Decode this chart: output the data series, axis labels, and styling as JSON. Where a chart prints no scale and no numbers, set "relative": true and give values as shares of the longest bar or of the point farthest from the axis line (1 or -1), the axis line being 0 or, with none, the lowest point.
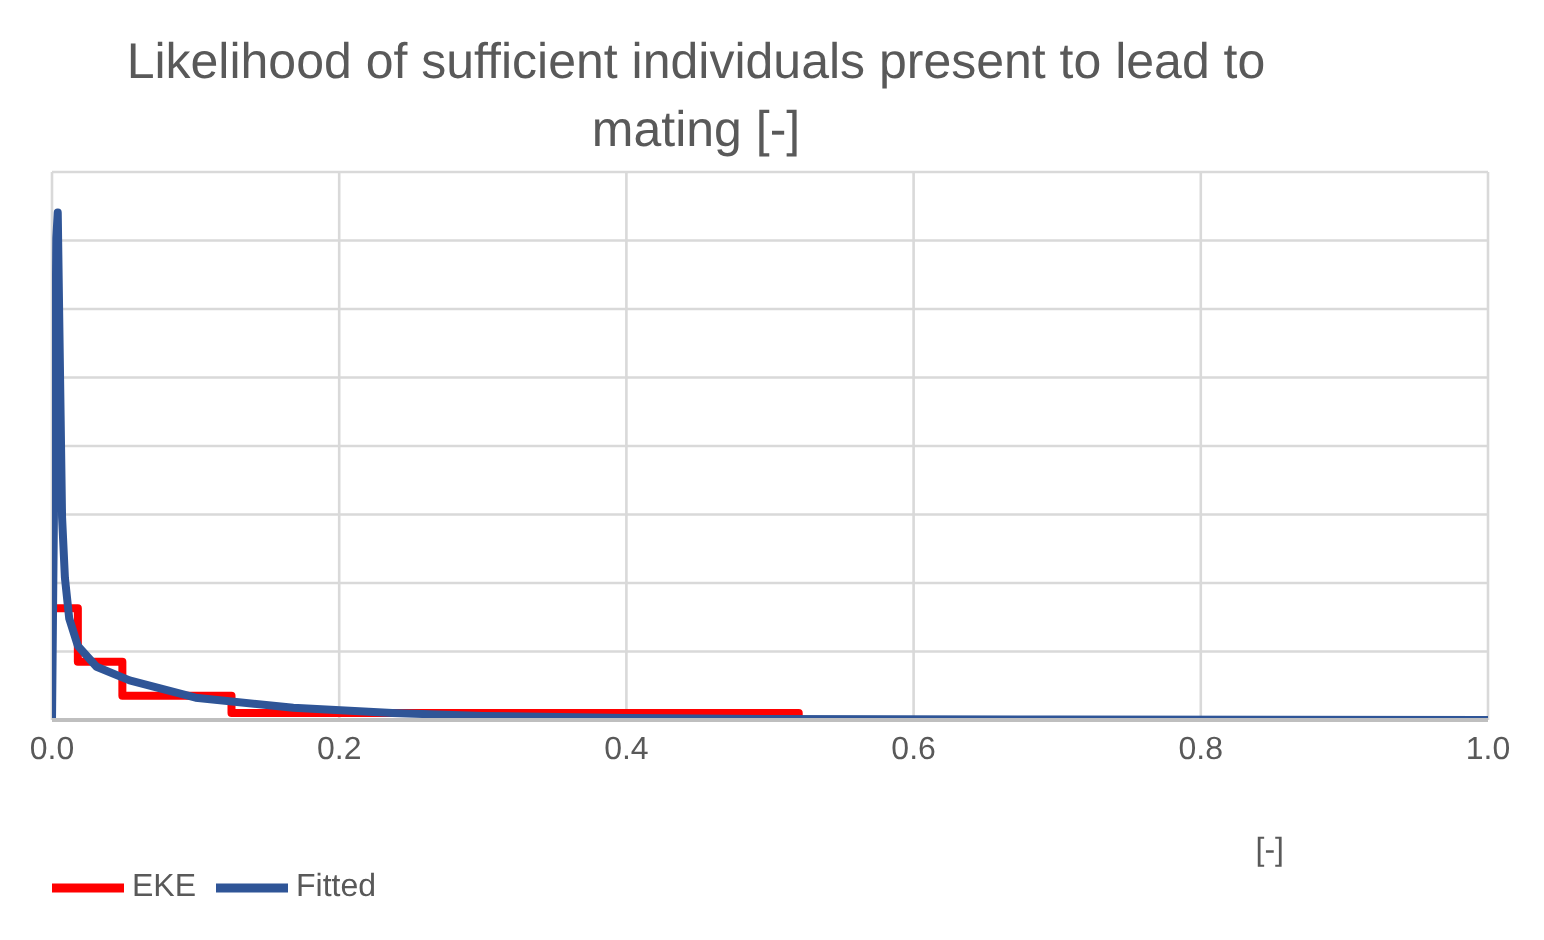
{
  "chart_data": {
    "type": "line",
    "title": "Likelihood of sufficient individuals present to lead to mating [-]",
    "xlabel": "[-]",
    "relative": true,
    "xlim": [
      0,
      1
    ],
    "xticks": [
      {
        "value": 0,
        "label": "0.0"
      },
      {
        "value": 0.2,
        "label": "0.2"
      },
      {
        "value": 0.4,
        "label": "0.4"
      },
      {
        "value": 0.6,
        "label": "0.6"
      },
      {
        "value": 0.8,
        "label": "0.8"
      },
      {
        "value": 1,
        "label": "1.0"
      }
    ],
    "grid": true,
    "legend": "bottom left",
    "marker": "none",
    "line_style": "solid",
    "series": [
      {
        "name": "EKE",
        "type": "step",
        "color": "#ff0000",
        "x": [
          0,
          0,
          0.018,
          0.049,
          0.125,
          0.52,
          1
        ],
        "values": [
          0,
          0.22,
          0.115,
          0.048,
          0.014,
          0,
          0
        ]
      },
      {
        "name": "Fitted",
        "type": "line",
        "color": "#2f5597",
        "x": [
          0,
          0.002,
          0.003,
          0.004,
          0.006,
          0.007,
          0.009,
          0.012,
          0.018,
          0.031,
          0.054,
          0.1,
          0.168,
          0.237,
          0.3,
          0.4,
          0.5,
          0.7,
          1
        ],
        "values": [
          0,
          0.6,
          0.95,
          1,
          0.6,
          0.4,
          0.28,
          0.2,
          0.146,
          0.105,
          0.078,
          0.044,
          0.024,
          0.014,
          0.008,
          0.004,
          0.002,
          0.001,
          0
        ]
      }
    ]
  }
}
